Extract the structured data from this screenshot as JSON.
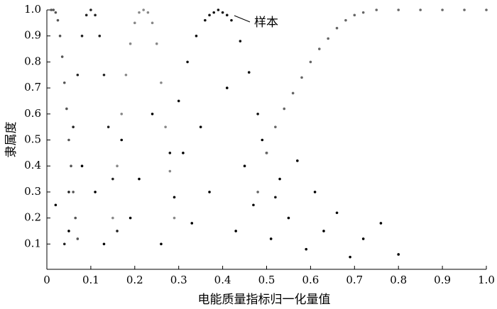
{
  "chart_data": {
    "type": "scatter",
    "x_label": "电能质量指标归一化量值",
    "y_label": "隶属度",
    "annotation": "样本",
    "xlim": [
      0,
      1
    ],
    "ylim": [
      0,
      1
    ],
    "xticks": [
      0,
      0.1,
      0.2,
      0.3,
      0.4,
      0.5,
      0.6,
      0.7,
      0.8,
      0.9,
      {
        "value": 1,
        "label": "1.0"
      }
    ],
    "yticks": [
      0.1,
      0.2,
      0.3,
      0.4,
      0.5,
      0.6,
      0.7,
      0.8,
      0.9,
      {
        "value": 1,
        "label": "1.0"
      }
    ],
    "series": [
      {
        "color": "#555555",
        "x": [
          0.01,
          0.015,
          0.02,
          0.025,
          0.03,
          0.035,
          0.04,
          0.045,
          0.05,
          0.055,
          0.06,
          0.065,
          0.07
        ],
        "values": [
          1,
          1,
          0.99,
          0.96,
          0.9,
          0.82,
          0.72,
          0.62,
          0.5,
          0.4,
          0.3,
          0.2,
          0.12
        ]
      },
      {
        "color": "#222222",
        "x": [
          0.04,
          0.05,
          0.06,
          0.07,
          0.08,
          0.09,
          0.1,
          0.11,
          0.12,
          0.13,
          0.14,
          0.15,
          0.16
        ],
        "values": [
          0.1,
          0.3,
          0.55,
          0.75,
          0.9,
          0.98,
          1,
          0.98,
          0.9,
          0.75,
          0.55,
          0.35,
          0.15
        ]
      },
      {
        "color": "#888888",
        "x": [
          0.15,
          0.16,
          0.17,
          0.18,
          0.19,
          0.2,
          0.21,
          0.22,
          0.23,
          0.24,
          0.25,
          0.26,
          0.27,
          0.28,
          0.29
        ],
        "values": [
          0.2,
          0.4,
          0.6,
          0.75,
          0.87,
          0.95,
          0.99,
          1,
          0.99,
          0.95,
          0.87,
          0.72,
          0.55,
          0.38,
          0.2
        ]
      },
      {
        "color": "#111111",
        "x": [
          0.28,
          0.3,
          0.32,
          0.34,
          0.36,
          0.37,
          0.38,
          0.39,
          0.4,
          0.41,
          0.42,
          0.44,
          0.46,
          0.48,
          0.5,
          0.52
        ],
        "values": [
          0.45,
          0.65,
          0.8,
          0.9,
          0.96,
          0.98,
          0.99,
          1,
          0.99,
          0.98,
          0.96,
          0.88,
          0.76,
          0.6,
          0.45,
          0.28
        ]
      },
      {
        "color": "#666666",
        "x": [
          0.48,
          0.5,
          0.52,
          0.54,
          0.56,
          0.58,
          0.6,
          0.62,
          0.64,
          0.66,
          0.68,
          0.7,
          0.72,
          0.75,
          0.8,
          0.85,
          0.9,
          0.95,
          1
        ],
        "values": [
          0.3,
          0.45,
          0.55,
          0.62,
          0.68,
          0.74,
          0.8,
          0.85,
          0.89,
          0.93,
          0.96,
          0.98,
          0.99,
          1,
          1,
          1,
          1,
          1,
          1
        ]
      },
      {
        "color": "#000000",
        "x": [
          0.02,
          0.05,
          0.08,
          0.11,
          0.13,
          0.17,
          0.19,
          0.21,
          0.24,
          0.26,
          0.29,
          0.31,
          0.33,
          0.35,
          0.37,
          0.41,
          0.43,
          0.45,
          0.47,
          0.49,
          0.51,
          0.53,
          0.55,
          0.57,
          0.59,
          0.61,
          0.63,
          0.66,
          0.69,
          0.72,
          0.76,
          0.8
        ],
        "values": [
          0.25,
          0.15,
          0.4,
          0.3,
          0.1,
          0.5,
          0.2,
          0.35,
          0.6,
          0.1,
          0.28,
          0.45,
          0.18,
          0.55,
          0.3,
          0.7,
          0.15,
          0.4,
          0.25,
          0.5,
          0.12,
          0.35,
          0.2,
          0.42,
          0.08,
          0.3,
          0.15,
          0.22,
          0.05,
          0.12,
          0.18,
          0.06
        ]
      }
    ]
  }
}
